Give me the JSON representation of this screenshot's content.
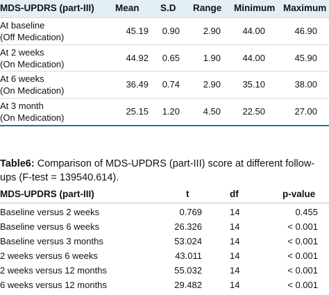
{
  "table1": {
    "headers": [
      "MDS-UPDRS (part-III)",
      "Mean",
      "S.D",
      "Range",
      "Minimum",
      "Maximum"
    ],
    "rows": [
      {
        "label1": "At baseline",
        "label2": "(Off Medication)",
        "mean": "45.19",
        "sd": "0.90",
        "range": "2.90",
        "min": "44.00",
        "max": "46.90"
      },
      {
        "label1": "At 2 weeks",
        "label2": "(On Medication)",
        "mean": "44.92",
        "sd": "0.65",
        "range": "1.90",
        "min": "44.00",
        "max": "45.90"
      },
      {
        "label1": "At 6 weeks",
        "label2": "(On Medication)",
        "mean": "36.49",
        "sd": "0.74",
        "range": "2.90",
        "min": "35.10",
        "max": "38.00"
      },
      {
        "label1": "At 3 month",
        "label2": "(On Medication)",
        "mean": "25.15",
        "sd": "1.20",
        "range": "4.50",
        "min": "22.50",
        "max": "27.00"
      }
    ]
  },
  "caption": {
    "bold": "Table6:",
    "line1": " Comparison of MDS-UPDRS (part-III) score at different follow-",
    "line2": "ups (F-test = 139540.614)."
  },
  "table2": {
    "headers": [
      "MDS-UPDRS (part-III)",
      "t",
      "df",
      "p-value"
    ],
    "rows": [
      {
        "label": "Baseline versus 2 weeks",
        "t": "0.769",
        "df": "14",
        "p": "0.455"
      },
      {
        "label": "Baseline versus 6 weeks",
        "t": "26.326",
        "df": "14",
        "p": "< 0.001"
      },
      {
        "label": "Baseline versus 3 months",
        "t": "53.024",
        "df": "14",
        "p": "< 0.001"
      },
      {
        "label": "2 weeks versus 6 weeks",
        "t": "43.011",
        "df": "14",
        "p": "< 0.001"
      },
      {
        "label": "2 weeks versus 12 months",
        "t": "55.032",
        "df": "14",
        "p": "< 0.001"
      },
      {
        "label": "6 weeks versus 12 months",
        "t": "29.482",
        "df": "14",
        "p": "< 0.001"
      }
    ]
  }
}
